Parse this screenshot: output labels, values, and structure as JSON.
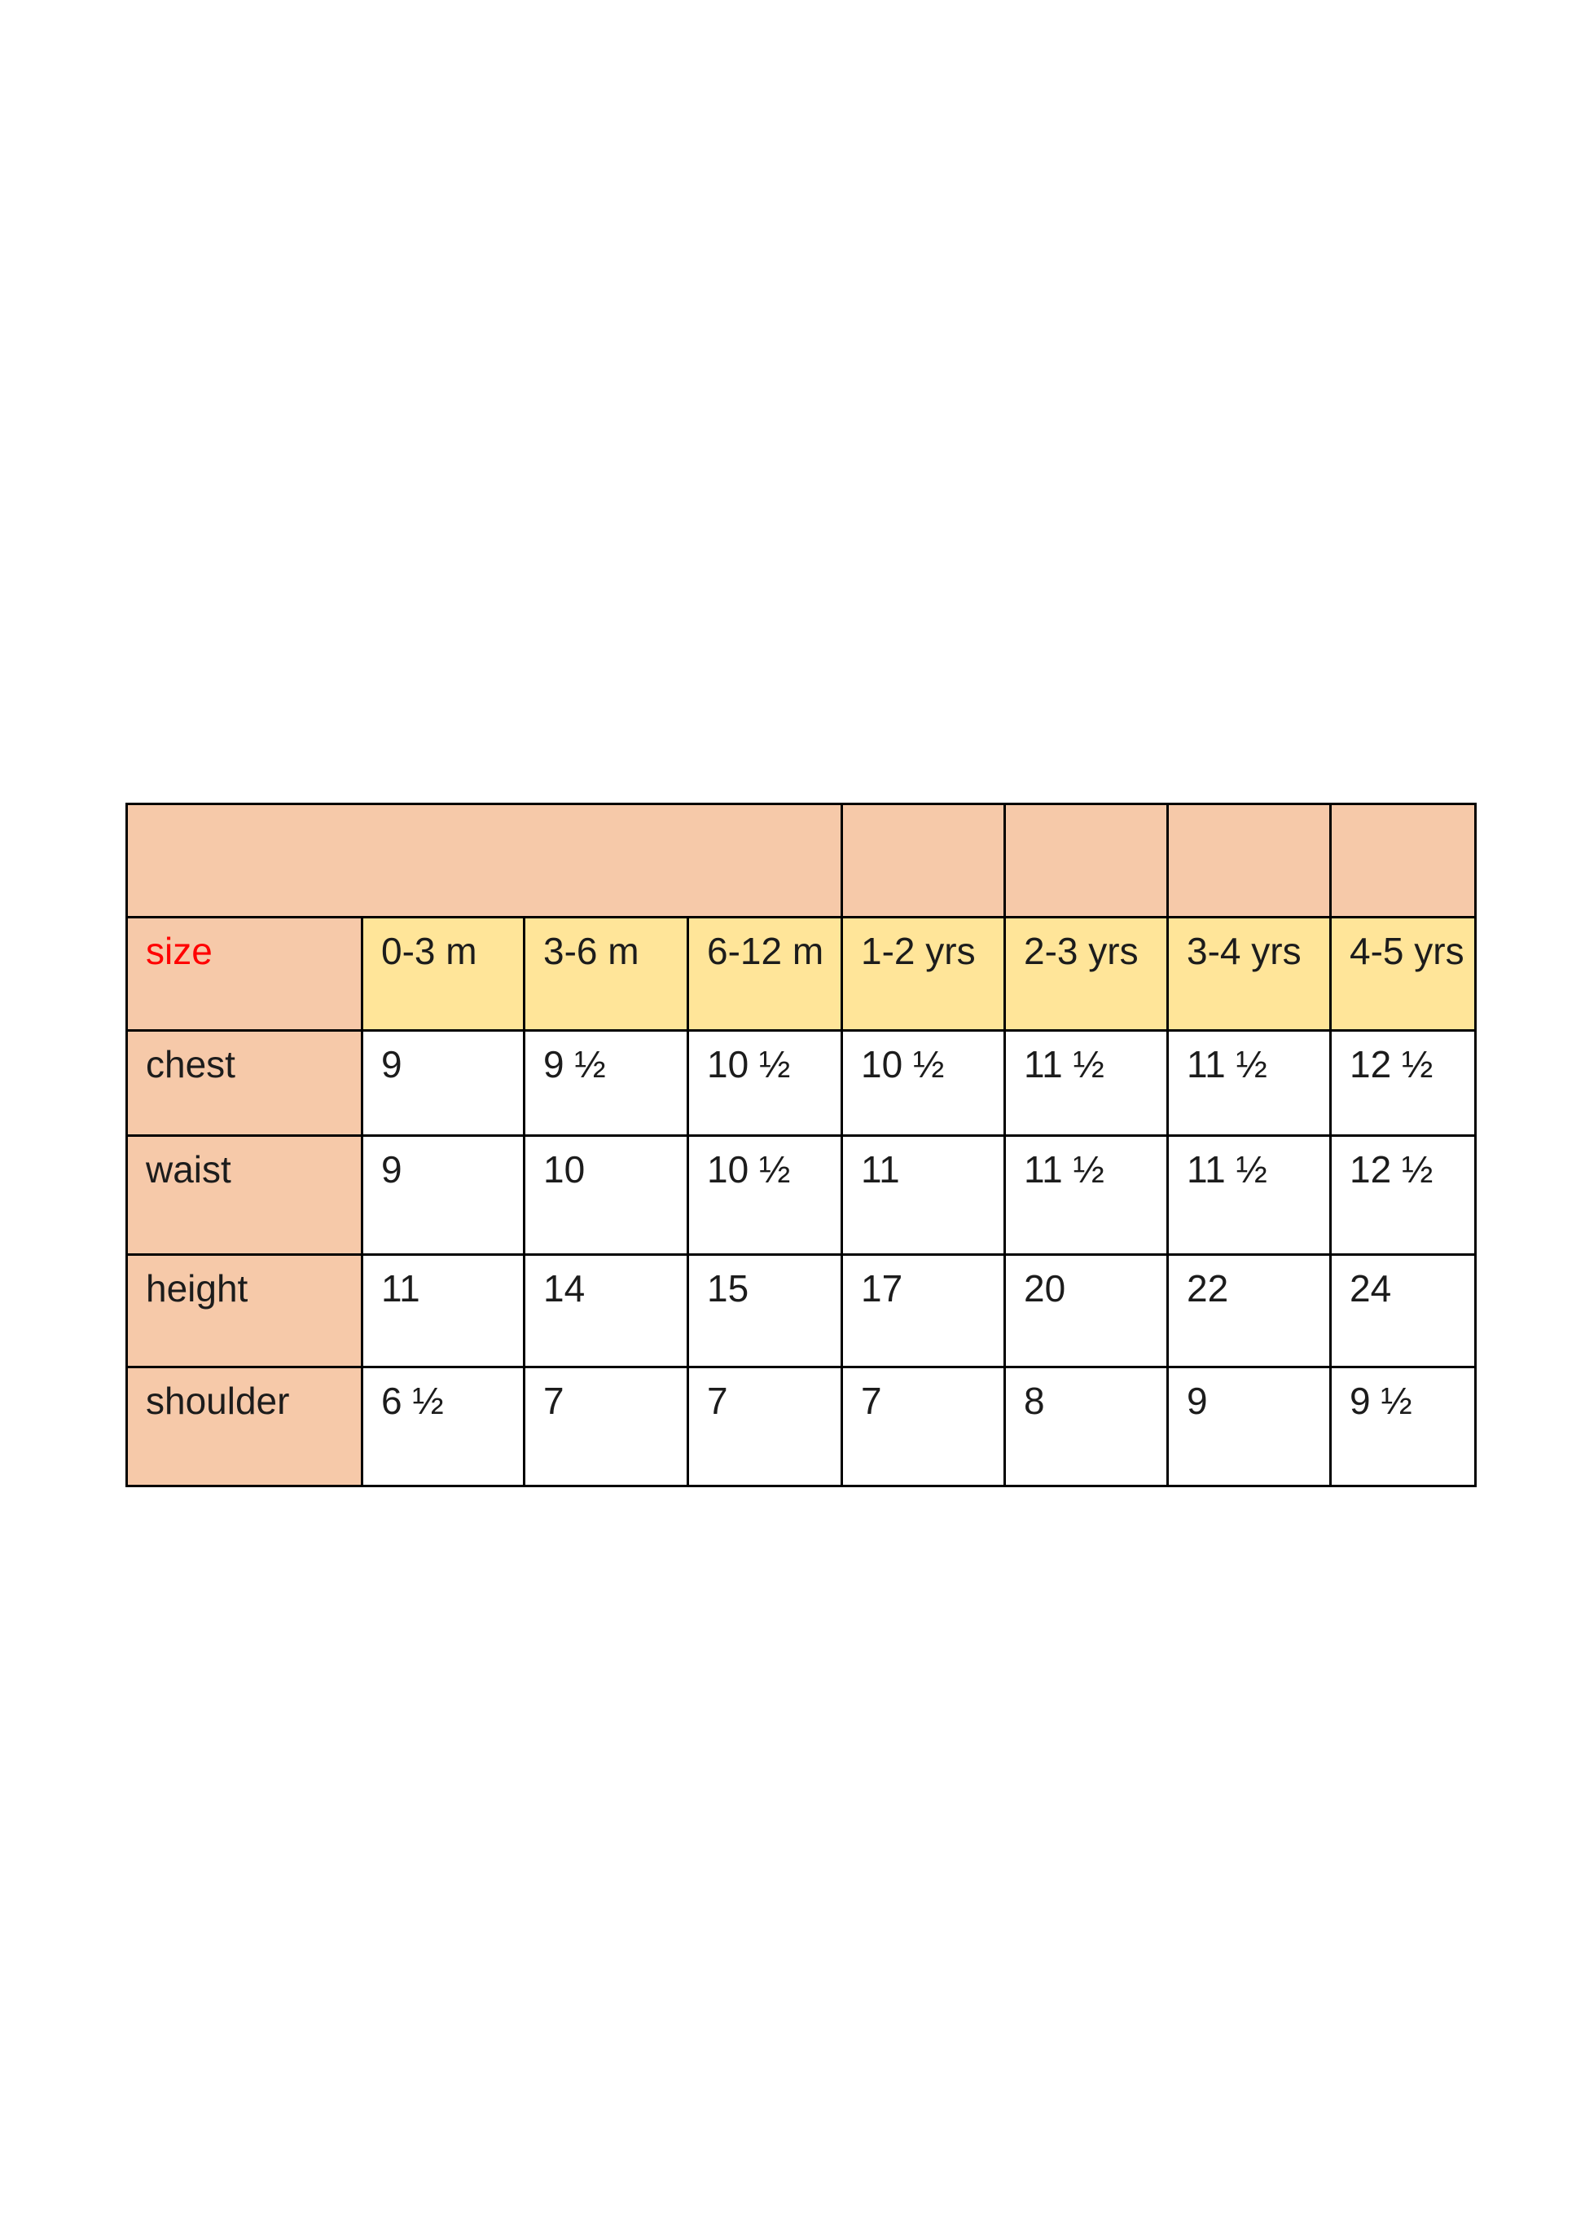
{
  "document": {
    "corner_label": "size",
    "size_headers": [
      "0-3 m",
      "3-6 m",
      "6-12 m",
      "1-2 yrs",
      "2-3 yrs",
      "3-4 yrs",
      "4-5 yrs"
    ],
    "rows": [
      {
        "label": "chest",
        "values": [
          "9",
          "9 ½",
          "10 ½",
          "10 ½",
          "11 ½",
          "11 ½",
          "12 ½"
        ]
      },
      {
        "label": "waist",
        "values": [
          "9",
          "10",
          "10 ½",
          "11",
          "11 ½",
          "11 ½",
          "12 ½"
        ]
      },
      {
        "label": "height",
        "values": [
          "11",
          "14",
          "15",
          "17",
          "20",
          "22",
          "24"
        ]
      },
      {
        "label": "shoulder",
        "values": [
          "6 ½",
          "7",
          "7",
          "7",
          "8",
          "9",
          "9 ½"
        ]
      }
    ],
    "colors": {
      "header_fill": "#f6c9a9",
      "size_header_fill": "#ffe599",
      "size_label_color": "#ff0000",
      "text_color": "#1c1c1c",
      "border_color": "#000000"
    }
  }
}
